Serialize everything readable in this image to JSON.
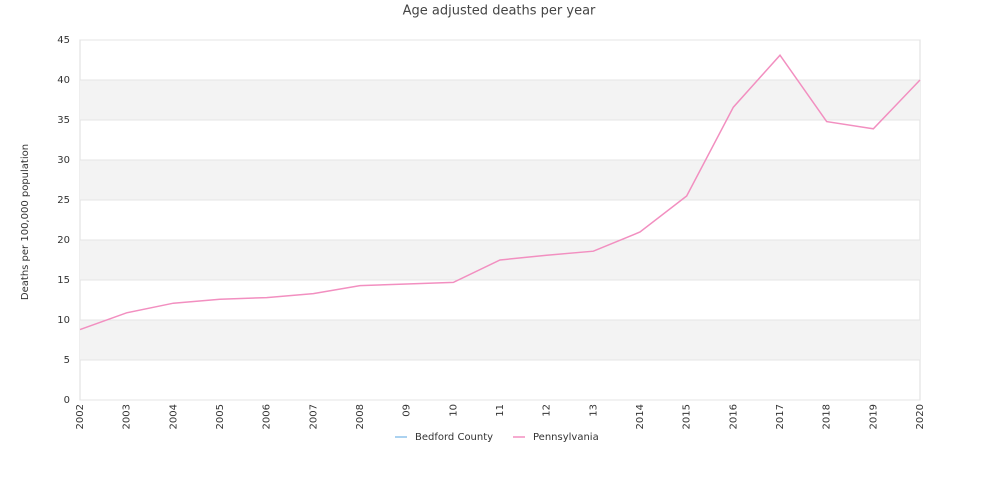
{
  "chart_data": {
    "type": "line",
    "title": "Age adjusted deaths per year",
    "y_label": "Deaths per 100,000 population",
    "categories": [
      "2002",
      "2003",
      "2004",
      "2005",
      "2006",
      "2007",
      "2008",
      "09",
      "10",
      "11",
      "12",
      "13",
      "2014",
      "2015",
      "2016",
      "2017",
      "2018",
      "2019",
      "2020"
    ],
    "series": [
      {
        "name": "Bedford County",
        "color": "#8fc3ea",
        "values": [
          null,
          null,
          null,
          null,
          null,
          null,
          null,
          null,
          null,
          null,
          null,
          null,
          null,
          null,
          null,
          null,
          null,
          null,
          null
        ]
      },
      {
        "name": "Pennsylvania",
        "color": "#f28fc0",
        "values": [
          8.8,
          10.9,
          12.1,
          12.6,
          12.8,
          13.3,
          14.3,
          14.5,
          14.7,
          17.5,
          18.1,
          18.6,
          21.0,
          25.5,
          36.6,
          43.1,
          34.8,
          33.9,
          40.0
        ]
      }
    ],
    "ylim": [
      0,
      45
    ],
    "yticks": [
      0,
      5,
      10,
      15,
      20,
      25,
      30,
      35,
      40,
      45
    ],
    "grid": true,
    "legend": "bottom"
  }
}
